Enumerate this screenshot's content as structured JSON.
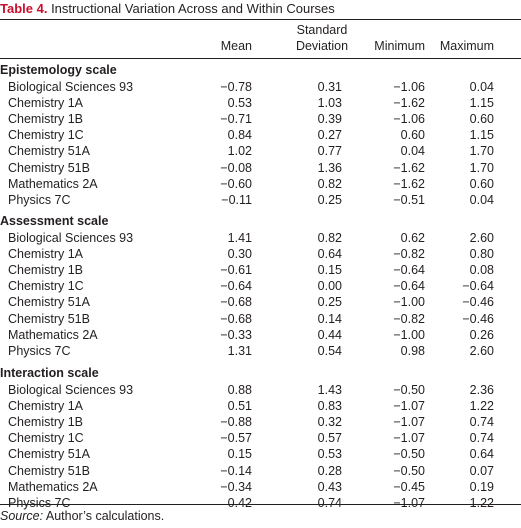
{
  "caption": {
    "label": "Table 4.",
    "title": " Instructional Variation Across and Within Courses"
  },
  "columns": {
    "mean": "Mean",
    "sd_line1": "Standard",
    "sd_line2": "Deviation",
    "minimum": "Minimum",
    "maximum": "Maximum"
  },
  "sections": [
    {
      "title": "Epistemology scale",
      "rows": [
        {
          "course": "Biological Sciences 93",
          "mean": "−0.78",
          "sd": "0.31",
          "min": "−1.06",
          "max": "0.04"
        },
        {
          "course": "Chemistry 1A",
          "mean": "0.53",
          "sd": "1.03",
          "min": "−1.62",
          "max": "1.15"
        },
        {
          "course": "Chemistry 1B",
          "mean": "−0.71",
          "sd": "0.39",
          "min": "−1.06",
          "max": "0.60"
        },
        {
          "course": "Chemistry 1C",
          "mean": "0.84",
          "sd": "0.27",
          "min": "0.60",
          "max": "1.15"
        },
        {
          "course": "Chemistry 51A",
          "mean": "1.02",
          "sd": "0.77",
          "min": "0.04",
          "max": "1.70"
        },
        {
          "course": "Chemistry 51B",
          "mean": "−0.08",
          "sd": "1.36",
          "min": "−1.62",
          "max": "1.70"
        },
        {
          "course": "Mathematics 2A",
          "mean": "−0.60",
          "sd": "0.82",
          "min": "−1.62",
          "max": "0.60"
        },
        {
          "course": "Physics 7C",
          "mean": "−0.11",
          "sd": "0.25",
          "min": "−0.51",
          "max": "0.04"
        }
      ]
    },
    {
      "title": "Assessment scale",
      "rows": [
        {
          "course": "Biological Sciences 93",
          "mean": "1.41",
          "sd": "0.82",
          "min": "0.62",
          "max": "2.60"
        },
        {
          "course": "Chemistry 1A",
          "mean": "0.30",
          "sd": "0.64",
          "min": "−0.82",
          "max": "0.80"
        },
        {
          "course": "Chemistry 1B",
          "mean": "−0.61",
          "sd": "0.15",
          "min": "−0.64",
          "max": "0.08"
        },
        {
          "course": "Chemistry 1C",
          "mean": "−0.64",
          "sd": "0.00",
          "min": "−0.64",
          "max": "−0.64"
        },
        {
          "course": "Chemistry 51A",
          "mean": "−0.68",
          "sd": "0.25",
          "min": "−1.00",
          "max": "−0.46"
        },
        {
          "course": "Chemistry 51B",
          "mean": "−0.68",
          "sd": "0.14",
          "min": "−0.82",
          "max": "−0.46"
        },
        {
          "course": "Mathematics 2A",
          "mean": "−0.33",
          "sd": "0.44",
          "min": "−1.00",
          "max": "0.26"
        },
        {
          "course": "Physics 7C",
          "mean": "1.31",
          "sd": "0.54",
          "min": "0.98",
          "max": "2.60"
        }
      ]
    },
    {
      "title": "Interaction scale",
      "rows": [
        {
          "course": "Biological Sciences 93",
          "mean": "0.88",
          "sd": "1.43",
          "min": "−0.50",
          "max": "2.36"
        },
        {
          "course": "Chemistry 1A",
          "mean": "0.51",
          "sd": "0.83",
          "min": "−1.07",
          "max": "1.22"
        },
        {
          "course": "Chemistry 1B",
          "mean": "−0.88",
          "sd": "0.32",
          "min": "−1.07",
          "max": "0.74"
        },
        {
          "course": "Chemistry 1C",
          "mean": "−0.57",
          "sd": "0.57",
          "min": "−1.07",
          "max": "0.74"
        },
        {
          "course": "Chemistry 51A",
          "mean": "0.15",
          "sd": "0.53",
          "min": "−0.50",
          "max": "0.64"
        },
        {
          "course": "Chemistry 51B",
          "mean": "−0.14",
          "sd": "0.28",
          "min": "−0.50",
          "max": "0.07"
        },
        {
          "course": "Mathematics 2A",
          "mean": "−0.34",
          "sd": "0.43",
          "min": "−0.45",
          "max": "0.19"
        },
        {
          "course": "Physics 7C",
          "mean": "0.42",
          "sd": "0.74",
          "min": "−1.07",
          "max": "1.22"
        }
      ]
    }
  ],
  "source": {
    "label": "Source:",
    "text": " Author’s calculations."
  },
  "colors": {
    "caption_label": "#c8102e",
    "text": "#231f20"
  }
}
